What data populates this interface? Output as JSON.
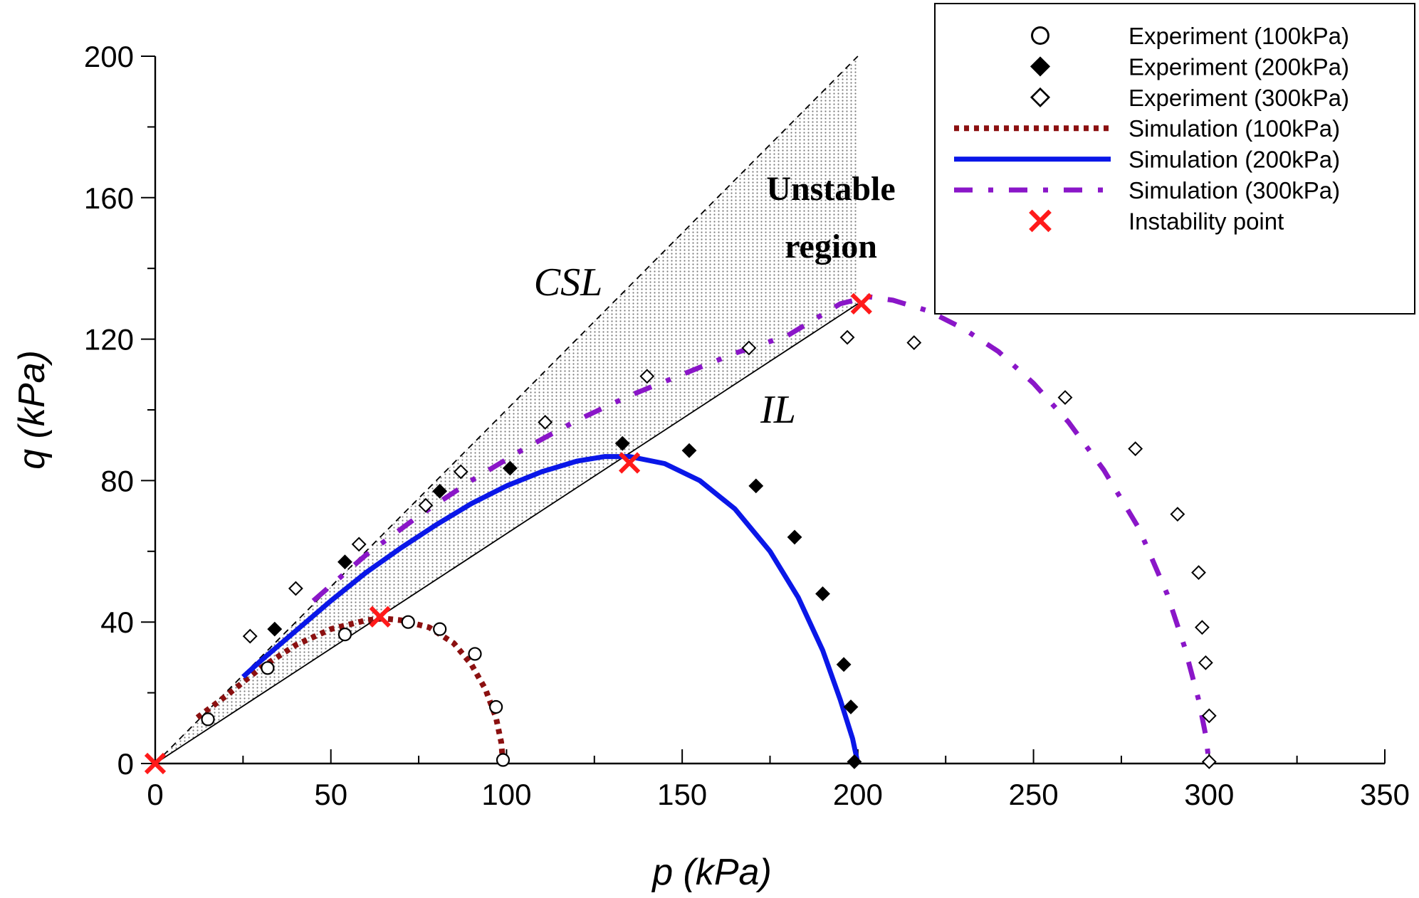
{
  "chart_data": {
    "type": "scatter",
    "xlabel": "p (kPa)",
    "ylabel": "q (kPa)",
    "xlim": [
      0,
      350
    ],
    "ylim": [
      0,
      200
    ],
    "xticks": [
      "0",
      "50",
      "100",
      "150",
      "200",
      "250",
      "300",
      "350"
    ],
    "yticks": [
      "0",
      "40",
      "80",
      "120",
      "160",
      "200"
    ],
    "grid": false,
    "legend_position": "top-right",
    "annotations": {
      "unstable_line1": "Unstable",
      "unstable_line2": "region",
      "csl": "CSL",
      "il": "IL"
    },
    "reference_lines": {
      "csl": {
        "slope": 1.0,
        "style": "dashed",
        "color": "#000000"
      },
      "il": {
        "slope": 0.65,
        "style": "solid",
        "color": "#000000"
      }
    },
    "shaded_region": {
      "x_start": 0,
      "x_end": 200,
      "upper_line": "csl",
      "lower_line": "il",
      "fill": "dotted-gray"
    },
    "series": [
      {
        "name": "Experiment (100kPa)",
        "kind": "marker",
        "marker": "circle-open",
        "color": "#000000",
        "points": [
          [
            15,
            12.5
          ],
          [
            32,
            27
          ],
          [
            54,
            36.5
          ],
          [
            72,
            40
          ],
          [
            81,
            38
          ],
          [
            91,
            31
          ],
          [
            97,
            16
          ],
          [
            99,
            1
          ]
        ]
      },
      {
        "name": "Experiment (200kPa)",
        "kind": "marker",
        "marker": "diamond-filled",
        "color": "#000000",
        "points": [
          [
            34,
            38
          ],
          [
            54,
            57
          ],
          [
            81,
            77
          ],
          [
            101,
            83.5
          ],
          [
            133,
            90.5
          ],
          [
            152,
            88.5
          ],
          [
            171,
            78.5
          ],
          [
            182,
            64
          ],
          [
            190,
            48
          ],
          [
            196,
            28
          ],
          [
            198,
            16
          ],
          [
            199,
            0.5
          ]
        ]
      },
      {
        "name": "Experiment (300kPa)",
        "kind": "marker",
        "marker": "diamond-open",
        "color": "#000000",
        "points": [
          [
            27,
            36
          ],
          [
            40,
            49.5
          ],
          [
            58,
            62
          ],
          [
            77,
            73
          ],
          [
            87,
            82.5
          ],
          [
            111,
            96.5
          ],
          [
            140,
            109.5
          ],
          [
            169,
            117.5
          ],
          [
            197,
            120.5
          ],
          [
            216,
            119
          ],
          [
            259,
            103.5
          ],
          [
            279,
            89
          ],
          [
            291,
            70.5
          ],
          [
            297,
            54
          ],
          [
            298,
            38.5
          ],
          [
            299,
            28.5
          ],
          [
            300,
            13.5
          ],
          [
            300,
            0.5
          ]
        ]
      },
      {
        "name": "Simulation (100kPa)",
        "kind": "line",
        "style": "dotted",
        "color": "#8b1010",
        "points": [
          [
            12,
            13
          ],
          [
            20,
            19
          ],
          [
            30,
            27
          ],
          [
            40,
            33.5
          ],
          [
            50,
            38
          ],
          [
            60,
            40.5
          ],
          [
            65,
            41
          ],
          [
            70,
            40.5
          ],
          [
            78,
            38.5
          ],
          [
            85,
            34
          ],
          [
            90,
            28
          ],
          [
            94,
            21
          ],
          [
            97,
            13
          ],
          [
            98.5,
            6
          ],
          [
            99,
            0
          ]
        ]
      },
      {
        "name": "Simulation (200kPa)",
        "kind": "line",
        "style": "solid",
        "color": "#0a17e8",
        "points": [
          [
            25,
            24.5
          ],
          [
            30,
            29
          ],
          [
            40,
            37.5
          ],
          [
            50,
            46
          ],
          [
            60,
            54
          ],
          [
            70,
            61
          ],
          [
            80,
            67.5
          ],
          [
            90,
            73.5
          ],
          [
            100,
            78.5
          ],
          [
            110,
            82.5
          ],
          [
            120,
            85.5
          ],
          [
            128,
            86.8
          ],
          [
            135,
            86.8
          ],
          [
            145,
            84.8
          ],
          [
            155,
            80
          ],
          [
            165,
            72
          ],
          [
            175,
            60
          ],
          [
            183,
            47
          ],
          [
            190,
            32
          ],
          [
            195,
            18
          ],
          [
            198.5,
            7
          ],
          [
            200,
            0
          ]
        ]
      },
      {
        "name": "Simulation (300kPa)",
        "kind": "line",
        "style": "dash-dot",
        "color": "#8a16c8",
        "points": [
          [
            45,
            46
          ],
          [
            60,
            59
          ],
          [
            75,
            70
          ],
          [
            90,
            80
          ],
          [
            105,
            89
          ],
          [
            120,
            97
          ],
          [
            135,
            104
          ],
          [
            150,
            110
          ],
          [
            165,
            116
          ],
          [
            180,
            121
          ],
          [
            195,
            130
          ],
          [
            203,
            132
          ],
          [
            210,
            131
          ],
          [
            220,
            128
          ],
          [
            230,
            123
          ],
          [
            240,
            116.5
          ],
          [
            250,
            107.5
          ],
          [
            260,
            96.5
          ],
          [
            270,
            83
          ],
          [
            280,
            66.5
          ],
          [
            288,
            48
          ],
          [
            293,
            33
          ],
          [
            297,
            18
          ],
          [
            299,
            8
          ],
          [
            300,
            0
          ]
        ]
      },
      {
        "name": "Instability point",
        "kind": "marker",
        "marker": "x",
        "color": "#ff1a1a",
        "points": [
          [
            0,
            0
          ],
          [
            64,
            41.5
          ],
          [
            135,
            85
          ],
          [
            201,
            130
          ]
        ]
      }
    ]
  }
}
